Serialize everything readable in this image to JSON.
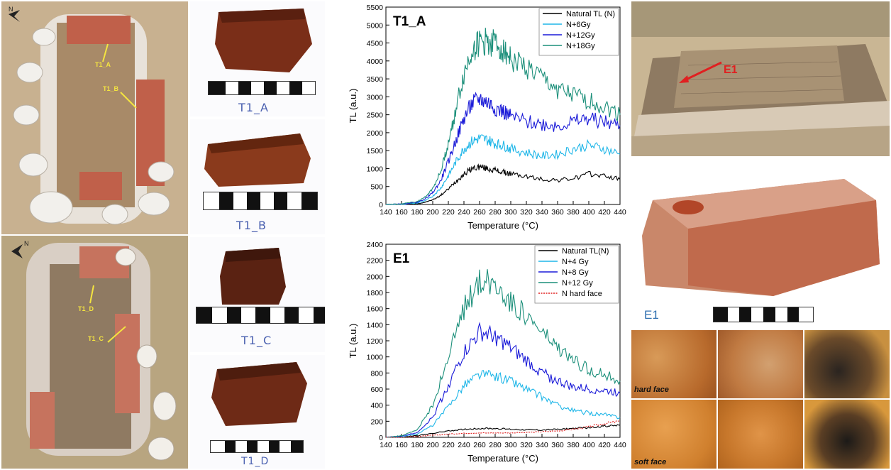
{
  "photo_labels": {
    "t1_a": "T1_A",
    "t1_b": "T1_B",
    "t1_c": "T1_C",
    "t1_d": "T1_D",
    "e1_arrow": "E1",
    "e1_caption": "E1",
    "hard_face": "hard face",
    "soft_face": "soft face"
  },
  "sample_captions": {
    "a": "T1_A",
    "b": "T1_B",
    "c": "T1_C",
    "d": "T1_D"
  },
  "colors": {
    "natural": "#000000",
    "dose1": "#1fb6e8",
    "dose2": "#1a1ad8",
    "dose3": "#1b8f7a",
    "hard": "#e02020"
  },
  "chart_data": [
    {
      "type": "line",
      "title": "T1_A",
      "xlabel": "Temperature (°C)",
      "ylabel": "TL (a.u.)",
      "xlim": [
        140,
        440
      ],
      "ylim": [
        0,
        5500
      ],
      "xticks": [
        140,
        160,
        180,
        200,
        220,
        240,
        260,
        280,
        300,
        320,
        340,
        360,
        380,
        400,
        420,
        440
      ],
      "yticks": [
        0,
        500,
        1000,
        1500,
        2000,
        2500,
        3000,
        3500,
        4000,
        4500,
        5000,
        5500
      ],
      "legend_position": "top-right",
      "series": [
        {
          "name": "Natural TL (N)",
          "color": "#000000",
          "x": [
            140,
            160,
            180,
            190,
            200,
            210,
            220,
            230,
            240,
            250,
            260,
            270,
            280,
            290,
            300,
            320,
            340,
            360,
            380,
            400,
            420,
            440
          ],
          "y": [
            0,
            5,
            20,
            60,
            130,
            250,
            430,
            650,
            850,
            1000,
            1050,
            1000,
            950,
            900,
            850,
            780,
            700,
            680,
            720,
            850,
            800,
            700
          ]
        },
        {
          "name": "N+6Gy",
          "color": "#1fb6e8",
          "x": [
            140,
            160,
            180,
            190,
            200,
            210,
            220,
            230,
            240,
            250,
            260,
            270,
            280,
            290,
            300,
            320,
            340,
            360,
            380,
            400,
            420,
            440
          ],
          "y": [
            0,
            8,
            40,
            100,
            230,
            450,
            800,
            1200,
            1550,
            1750,
            1850,
            1800,
            1700,
            1650,
            1550,
            1450,
            1350,
            1400,
            1550,
            1650,
            1550,
            1400
          ]
        },
        {
          "name": "N+12Gy",
          "color": "#1a1ad8",
          "x": [
            140,
            160,
            180,
            190,
            200,
            210,
            220,
            230,
            240,
            250,
            260,
            270,
            280,
            290,
            300,
            320,
            340,
            360,
            380,
            400,
            420,
            440
          ],
          "y": [
            0,
            10,
            60,
            150,
            330,
            650,
            1200,
            1800,
            2400,
            2800,
            2950,
            2850,
            2700,
            2600,
            2450,
            2300,
            2250,
            2200,
            2300,
            2400,
            2300,
            2200
          ]
        },
        {
          "name": "N+18Gy",
          "color": "#1b8f7a",
          "x": [
            140,
            160,
            180,
            190,
            200,
            210,
            220,
            230,
            240,
            250,
            260,
            270,
            280,
            290,
            300,
            320,
            340,
            360,
            380,
            400,
            420,
            440
          ],
          "y": [
            0,
            15,
            80,
            200,
            450,
            900,
            1700,
            2700,
            3600,
            4300,
            4500,
            4550,
            4500,
            4350,
            4100,
            3800,
            3500,
            3200,
            3000,
            2900,
            2700,
            2500
          ]
        }
      ]
    },
    {
      "type": "line",
      "title": "E1",
      "xlabel": "Temperature (°C)",
      "ylabel": "TL (a.u.)",
      "xlim": [
        140,
        440
      ],
      "ylim": [
        0,
        2400
      ],
      "xticks": [
        140,
        160,
        180,
        200,
        220,
        240,
        260,
        280,
        300,
        320,
        340,
        360,
        380,
        400,
        420,
        440
      ],
      "yticks": [
        0,
        200,
        400,
        600,
        800,
        1000,
        1200,
        1400,
        1600,
        1800,
        2000,
        2200,
        2400
      ],
      "legend_position": "top-right",
      "series": [
        {
          "name": "Natural TL(N)",
          "color": "#000000",
          "x": [
            140,
            160,
            180,
            200,
            220,
            240,
            260,
            280,
            300,
            320,
            340,
            360,
            380,
            400,
            420,
            440
          ],
          "y": [
            0,
            5,
            20,
            50,
            80,
            100,
            110,
            110,
            100,
            95,
            90,
            100,
            110,
            120,
            140,
            150
          ]
        },
        {
          "name": "N+4 Gy",
          "color": "#1fb6e8",
          "x": [
            140,
            160,
            180,
            200,
            220,
            240,
            260,
            280,
            300,
            320,
            340,
            360,
            380,
            400,
            420,
            440
          ],
          "y": [
            0,
            10,
            40,
            150,
            380,
            650,
            780,
            760,
            700,
            600,
            500,
            400,
            330,
            300,
            280,
            250
          ]
        },
        {
          "name": "N+8 Gy",
          "color": "#1a1ad8",
          "x": [
            140,
            160,
            180,
            200,
            220,
            240,
            260,
            280,
            300,
            320,
            340,
            360,
            380,
            400,
            420,
            440
          ],
          "y": [
            0,
            15,
            60,
            250,
            650,
            1050,
            1300,
            1250,
            1100,
            950,
            800,
            700,
            620,
            600,
            580,
            550
          ]
        },
        {
          "name": "N+12 Gy",
          "color": "#1b8f7a",
          "x": [
            140,
            160,
            180,
            200,
            220,
            240,
            260,
            280,
            300,
            320,
            340,
            360,
            380,
            400,
            420,
            440
          ],
          "y": [
            0,
            20,
            90,
            400,
            1000,
            1600,
            1950,
            1900,
            1700,
            1500,
            1300,
            1100,
            950,
            850,
            780,
            700
          ]
        },
        {
          "name": "N hard face",
          "color": "#e02020",
          "x": [
            140,
            160,
            180,
            200,
            220,
            240,
            260,
            280,
            300,
            320,
            340,
            360,
            380,
            400,
            420,
            440
          ],
          "y": [
            0,
            3,
            10,
            25,
            40,
            50,
            55,
            55,
            55,
            60,
            70,
            80,
            100,
            130,
            170,
            200
          ]
        }
      ]
    }
  ]
}
